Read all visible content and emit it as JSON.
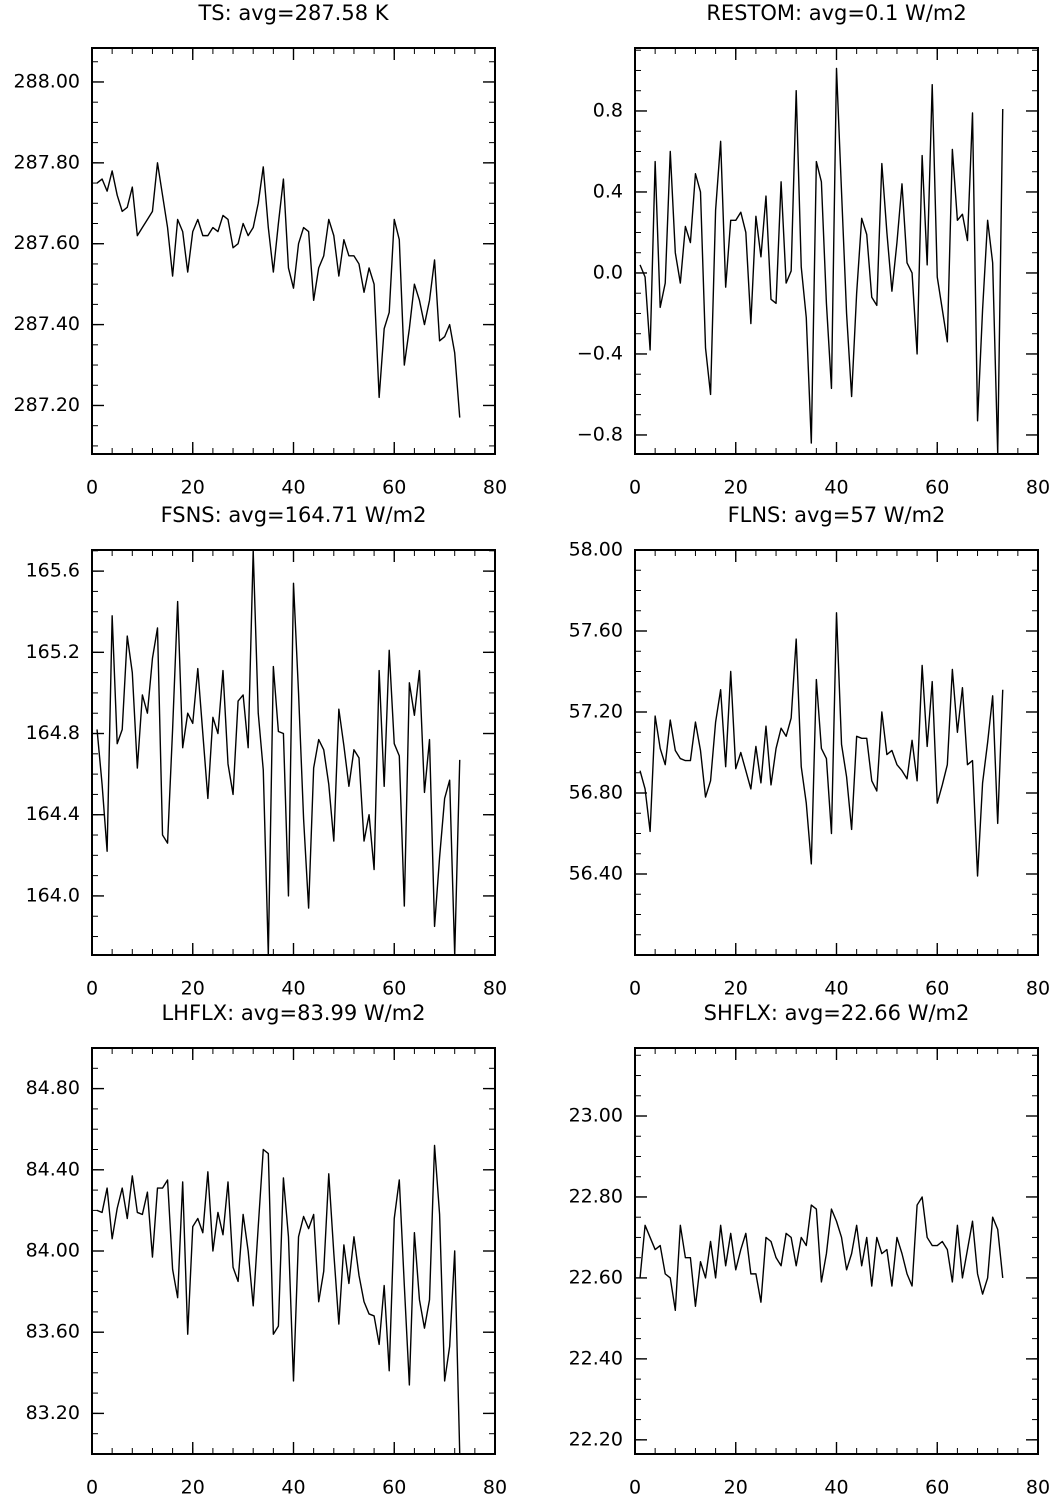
{
  "chart_data": [
    {
      "type": "line",
      "title": "TS: avg=287.58 K",
      "color": "#000000",
      "x": [
        1,
        2,
        3,
        4,
        5,
        6,
        7,
        8,
        9,
        10,
        11,
        12,
        13,
        14,
        15,
        16,
        17,
        18,
        19,
        20,
        21,
        22,
        23,
        24,
        25,
        26,
        27,
        28,
        29,
        30,
        31,
        32,
        33,
        34,
        35,
        36,
        37,
        38,
        39,
        40,
        41,
        42,
        43,
        44,
        45,
        46,
        47,
        48,
        49,
        50,
        51,
        52,
        53,
        54,
        55,
        56,
        57,
        58,
        59,
        60,
        61,
        62,
        63,
        64,
        65,
        66,
        67,
        68,
        69,
        70,
        71,
        72,
        73
      ],
      "values": [
        287.75,
        287.76,
        287.73,
        287.78,
        287.72,
        287.68,
        287.69,
        287.74,
        287.62,
        287.64,
        287.66,
        287.68,
        287.8,
        287.72,
        287.64,
        287.52,
        287.66,
        287.63,
        287.53,
        287.63,
        287.66,
        287.62,
        287.62,
        287.64,
        287.63,
        287.67,
        287.66,
        287.59,
        287.6,
        287.65,
        287.62,
        287.64,
        287.7,
        287.79,
        287.64,
        287.53,
        287.65,
        287.76,
        287.54,
        287.49,
        287.6,
        287.64,
        287.63,
        287.46,
        287.54,
        287.57,
        287.66,
        287.62,
        287.52,
        287.61,
        287.57,
        287.57,
        287.55,
        287.48,
        287.54,
        287.5,
        287.22,
        287.39,
        287.43,
        287.66,
        287.61,
        287.3,
        287.39,
        287.5,
        287.46,
        287.4,
        287.46,
        287.56,
        287.36,
        287.37,
        287.4,
        287.33,
        287.17
      ],
      "xlim": [
        0,
        80
      ],
      "xticks": [
        0,
        20,
        40,
        60,
        80
      ],
      "ylim": [
        287.08,
        288.084
      ],
      "yticks": [
        {
          "value": 287.2,
          "label": "287.20"
        },
        {
          "value": 287.4,
          "label": "287.40"
        },
        {
          "value": 287.6,
          "label": "287.60"
        },
        {
          "value": 287.8,
          "label": "287.80"
        },
        {
          "value": 288,
          "label": "288.00"
        }
      ]
    },
    {
      "type": "line",
      "title": "RESTOM: avg=0.1 W/m2",
      "color": "#000000",
      "x": [
        1,
        2,
        3,
        4,
        5,
        6,
        7,
        8,
        9,
        10,
        11,
        12,
        13,
        14,
        15,
        16,
        17,
        18,
        19,
        20,
        21,
        22,
        23,
        24,
        25,
        26,
        27,
        28,
        29,
        30,
        31,
        32,
        33,
        34,
        35,
        36,
        37,
        38,
        39,
        40,
        41,
        42,
        43,
        44,
        45,
        46,
        47,
        48,
        49,
        50,
        51,
        52,
        53,
        54,
        55,
        56,
        57,
        58,
        59,
        60,
        61,
        62,
        63,
        64,
        65,
        66,
        67,
        68,
        69,
        70,
        71,
        72,
        73
      ],
      "values": [
        0.04,
        -0.02,
        -0.38,
        0.55,
        -0.17,
        -0.05,
        0.6,
        0.1,
        -0.05,
        0.23,
        0.15,
        0.49,
        0.4,
        -0.37,
        -0.6,
        0.31,
        0.65,
        -0.07,
        0.26,
        0.26,
        0.3,
        0.2,
        -0.25,
        0.28,
        0.08,
        0.38,
        -0.13,
        -0.15,
        0.45,
        -0.05,
        0.01,
        0.9,
        0.03,
        -0.22,
        -0.84,
        0.55,
        0.45,
        -0.15,
        -0.57,
        1.01,
        0.4,
        -0.2,
        -0.61,
        -0.1,
        0.27,
        0.19,
        -0.12,
        -0.16,
        0.54,
        0.2,
        -0.09,
        0.15,
        0.44,
        0.05,
        0.0,
        -0.4,
        0.58,
        0.04,
        0.93,
        -0.02,
        -0.18,
        -0.34,
        0.61,
        0.26,
        0.29,
        0.16,
        0.79,
        -0.73,
        -0.18,
        0.26,
        0.05,
        -0.89,
        0.81
      ],
      "xlim": [
        0,
        80
      ],
      "xticks": [
        0,
        20,
        40,
        60,
        80
      ],
      "ylim": [
        -0.894,
        1.111
      ],
      "yticks": [
        {
          "value": -0.8,
          "label": "−0.8"
        },
        {
          "value": -0.4,
          "label": "−0.4"
        },
        {
          "value": 0,
          "label": "0.0"
        },
        0.4,
        0.8
      ]
    },
    {
      "type": "line",
      "title": "FSNS: avg=164.71 W/m2",
      "color": "#000000",
      "x": [
        1,
        2,
        3,
        4,
        5,
        6,
        7,
        8,
        9,
        10,
        11,
        12,
        13,
        14,
        15,
        16,
        17,
        18,
        19,
        20,
        21,
        22,
        23,
        24,
        25,
        26,
        27,
        28,
        29,
        30,
        31,
        32,
        33,
        34,
        35,
        36,
        37,
        38,
        39,
        40,
        41,
        42,
        43,
        44,
        45,
        46,
        47,
        48,
        49,
        50,
        51,
        52,
        53,
        54,
        55,
        56,
        57,
        58,
        59,
        60,
        61,
        62,
        63,
        64,
        65,
        66,
        67,
        68,
        69,
        70,
        71,
        72,
        73
      ],
      "values": [
        164.82,
        164.55,
        164.22,
        165.38,
        164.75,
        164.82,
        165.28,
        165.1,
        164.63,
        164.99,
        164.9,
        165.17,
        165.32,
        164.3,
        164.26,
        164.82,
        165.45,
        164.73,
        164.9,
        164.85,
        165.12,
        164.8,
        164.48,
        164.88,
        164.8,
        165.11,
        164.65,
        164.5,
        164.96,
        164.99,
        164.73,
        165.7,
        164.9,
        164.62,
        163.71,
        165.13,
        164.81,
        164.8,
        164.0,
        165.54,
        165.0,
        164.38,
        163.94,
        164.63,
        164.77,
        164.72,
        164.55,
        164.27,
        164.92,
        164.74,
        164.54,
        164.72,
        164.68,
        164.27,
        164.4,
        164.13,
        165.11,
        164.54,
        165.21,
        164.75,
        164.69,
        163.95,
        165.05,
        164.89,
        165.11,
        164.51,
        164.77,
        163.85,
        164.19,
        164.48,
        164.57,
        163.71,
        164.67
      ],
      "xlim": [
        0,
        80
      ],
      "xticks": [
        0,
        20,
        40,
        60,
        80
      ],
      "ylim": [
        163.709,
        165.704
      ],
      "yticks": [
        {
          "value": 164,
          "label": "164.0"
        },
        164.4,
        164.8,
        165.2,
        165.6
      ]
    },
    {
      "type": "line",
      "title": "FLNS: avg=57 W/m2",
      "color": "#000000",
      "x": [
        1,
        2,
        3,
        4,
        5,
        6,
        7,
        8,
        9,
        10,
        11,
        12,
        13,
        14,
        15,
        16,
        17,
        18,
        19,
        20,
        21,
        22,
        23,
        24,
        25,
        26,
        27,
        28,
        29,
        30,
        31,
        32,
        33,
        34,
        35,
        36,
        37,
        38,
        39,
        40,
        41,
        42,
        43,
        44,
        45,
        46,
        47,
        48,
        49,
        50,
        51,
        52,
        53,
        54,
        55,
        56,
        57,
        58,
        59,
        60,
        61,
        62,
        63,
        64,
        65,
        66,
        67,
        68,
        69,
        70,
        71,
        72,
        73
      ],
      "values": [
        56.91,
        56.82,
        56.61,
        57.18,
        57.02,
        56.94,
        57.16,
        57.01,
        56.97,
        56.96,
        56.96,
        57.15,
        57.01,
        56.78,
        56.86,
        57.15,
        57.31,
        56.93,
        57.4,
        56.92,
        57.0,
        56.91,
        56.82,
        57.03,
        56.85,
        57.13,
        56.84,
        57.02,
        57.12,
        57.08,
        57.17,
        57.56,
        56.93,
        56.75,
        56.45,
        57.36,
        57.02,
        56.97,
        56.6,
        57.69,
        57.04,
        56.88,
        56.62,
        57.08,
        57.07,
        57.07,
        56.86,
        56.81,
        57.2,
        56.99,
        57.01,
        56.94,
        56.91,
        56.87,
        57.06,
        56.86,
        57.43,
        57.03,
        57.35,
        56.75,
        56.84,
        56.94,
        57.41,
        57.1,
        57.32,
        56.94,
        56.96,
        56.39,
        56.85,
        57.05,
        57.28,
        56.65,
        57.31
      ],
      "xlim": [
        0,
        80
      ],
      "xticks": [
        0,
        20,
        40,
        60,
        80
      ],
      "ylim": [
        56,
        58
      ],
      "yticks": [
        {
          "value": 56.4,
          "label": "56.40"
        },
        {
          "value": 56.8,
          "label": "56.80"
        },
        {
          "value": 57.2,
          "label": "57.20"
        },
        {
          "value": 57.6,
          "label": "57.60"
        },
        {
          "value": 58,
          "label": "58.00"
        }
      ]
    },
    {
      "type": "line",
      "title": "LHFLX: avg=83.99 W/m2",
      "color": "#000000",
      "x": [
        1,
        2,
        3,
        4,
        5,
        6,
        7,
        8,
        9,
        10,
        11,
        12,
        13,
        14,
        15,
        16,
        17,
        18,
        19,
        20,
        21,
        22,
        23,
        24,
        25,
        26,
        27,
        28,
        29,
        30,
        31,
        32,
        33,
        34,
        35,
        36,
        37,
        38,
        39,
        40,
        41,
        42,
        43,
        44,
        45,
        46,
        47,
        48,
        49,
        50,
        51,
        52,
        53,
        54,
        55,
        56,
        57,
        58,
        59,
        60,
        61,
        62,
        63,
        64,
        65,
        66,
        67,
        68,
        69,
        70,
        71,
        72,
        73
      ],
      "values": [
        84.2,
        84.19,
        84.31,
        84.06,
        84.21,
        84.31,
        84.16,
        84.37,
        84.19,
        84.18,
        84.29,
        83.97,
        84.31,
        84.31,
        84.35,
        83.91,
        83.77,
        84.34,
        83.59,
        84.12,
        84.16,
        84.09,
        84.39,
        84.0,
        84.19,
        84.08,
        84.34,
        83.92,
        83.85,
        84.18,
        84.0,
        83.73,
        84.12,
        84.5,
        84.48,
        83.59,
        83.63,
        84.36,
        84.07,
        83.36,
        84.07,
        84.17,
        84.11,
        84.18,
        83.75,
        83.9,
        84.38,
        83.99,
        83.64,
        84.03,
        83.84,
        84.07,
        83.88,
        83.75,
        83.69,
        83.68,
        83.54,
        83.83,
        83.41,
        84.16,
        84.35,
        83.83,
        83.34,
        84.09,
        83.76,
        83.62,
        83.76,
        84.52,
        84.18,
        83.36,
        83.53,
        84.0,
        83.0
      ],
      "xlim": [
        0,
        80
      ],
      "xticks": [
        0,
        20,
        40,
        60,
        80
      ],
      "ylim": [
        83,
        85
      ],
      "yticks": [
        {
          "value": 83.2,
          "label": "83.20"
        },
        {
          "value": 83.6,
          "label": "83.60"
        },
        {
          "value": 84,
          "label": "84.00"
        },
        {
          "value": 84.4,
          "label": "84.40"
        },
        {
          "value": 84.8,
          "label": "84.80"
        }
      ]
    },
    {
      "type": "line",
      "title": "SHFLX: avg=22.66 W/m2",
      "color": "#000000",
      "x": [
        1,
        2,
        3,
        4,
        5,
        6,
        7,
        8,
        9,
        10,
        11,
        12,
        13,
        14,
        15,
        16,
        17,
        18,
        19,
        20,
        21,
        22,
        23,
        24,
        25,
        26,
        27,
        28,
        29,
        30,
        31,
        32,
        33,
        34,
        35,
        36,
        37,
        38,
        39,
        40,
        41,
        42,
        43,
        44,
        45,
        46,
        47,
        48,
        49,
        50,
        51,
        52,
        53,
        54,
        55,
        56,
        57,
        58,
        59,
        60,
        61,
        62,
        63,
        64,
        65,
        66,
        67,
        68,
        69,
        70,
        71,
        72,
        73
      ],
      "values": [
        22.6,
        22.73,
        22.7,
        22.67,
        22.68,
        22.61,
        22.6,
        22.52,
        22.73,
        22.65,
        22.65,
        22.53,
        22.64,
        22.6,
        22.69,
        22.6,
        22.73,
        22.63,
        22.71,
        22.62,
        22.67,
        22.71,
        22.61,
        22.61,
        22.54,
        22.7,
        22.69,
        22.65,
        22.63,
        22.71,
        22.7,
        22.63,
        22.7,
        22.68,
        22.78,
        22.77,
        22.59,
        22.66,
        22.77,
        22.74,
        22.7,
        22.62,
        22.66,
        22.73,
        22.63,
        22.7,
        22.58,
        22.7,
        22.66,
        22.67,
        22.58,
        22.7,
        22.66,
        22.61,
        22.58,
        22.78,
        22.8,
        22.7,
        22.68,
        22.68,
        22.69,
        22.67,
        22.59,
        22.73,
        22.6,
        22.67,
        22.74,
        22.61,
        22.56,
        22.6,
        22.75,
        22.72,
        22.6
      ],
      "xlim": [
        0,
        80
      ],
      "xticks": [
        0,
        20,
        40,
        60,
        80
      ],
      "ylim": [
        22.165,
        23.168
      ],
      "yticks": [
        {
          "value": 22.2,
          "label": "22.20"
        },
        {
          "value": 22.4,
          "label": "22.40"
        },
        {
          "value": 22.6,
          "label": "22.60"
        },
        {
          "value": 22.8,
          "label": "22.80"
        },
        {
          "value": 23,
          "label": "23.00"
        }
      ]
    }
  ]
}
